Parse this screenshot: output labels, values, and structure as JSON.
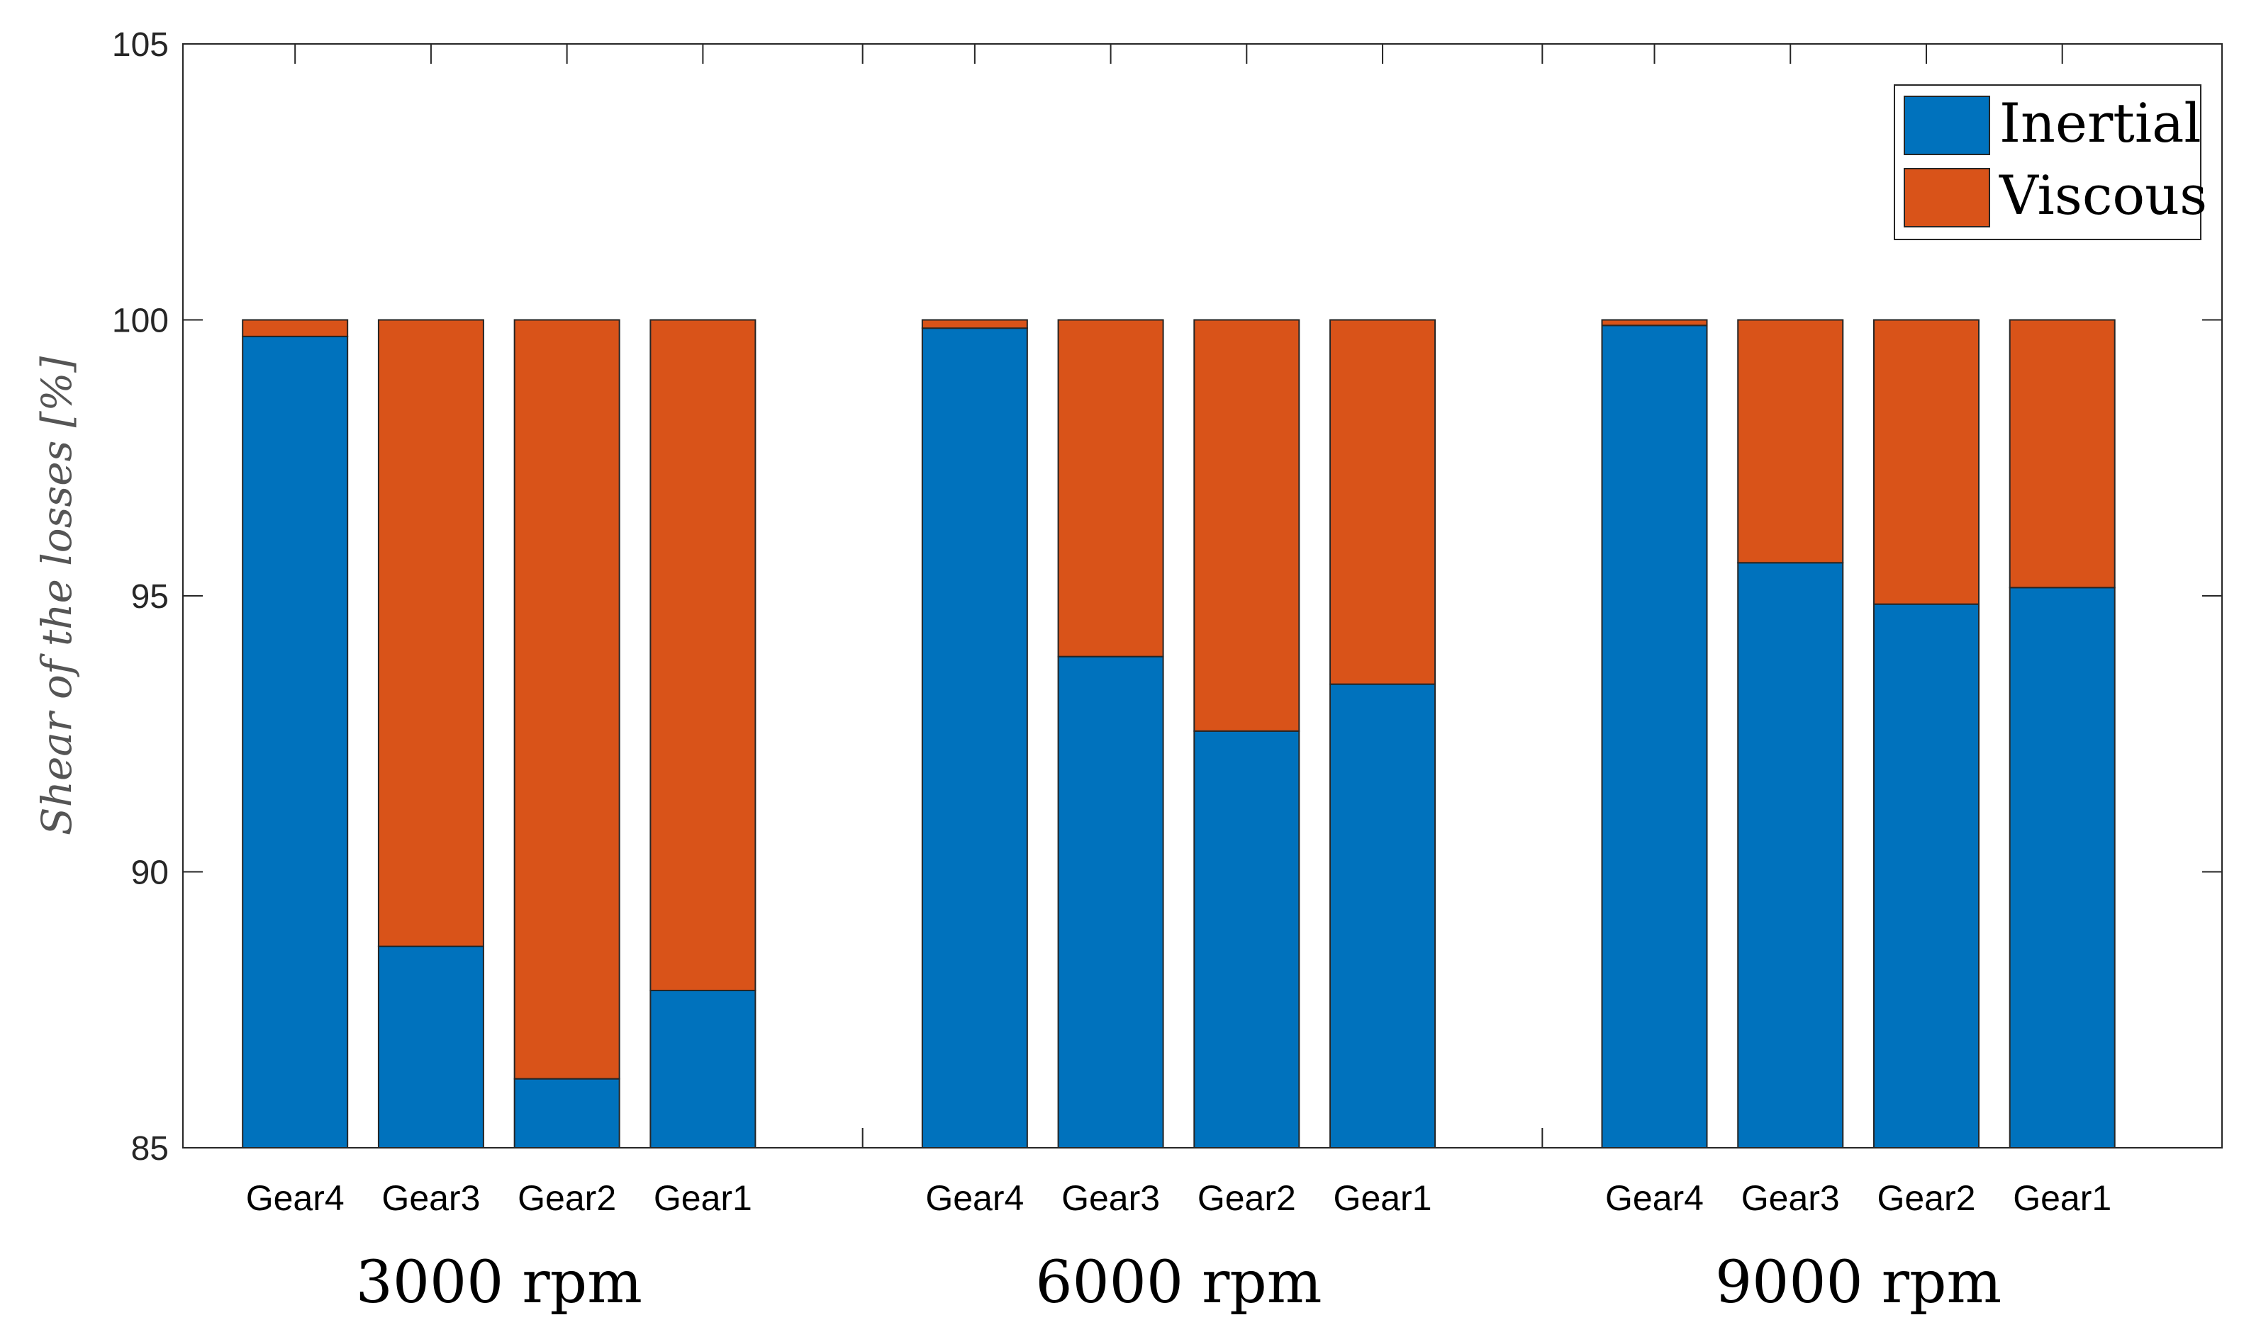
{
  "chart_data": {
    "type": "bar",
    "stacked": true,
    "ylabel": "Shear of the losses [%]",
    "ylim": [
      85,
      105
    ],
    "yticks": [
      85,
      90,
      95,
      100,
      105
    ],
    "legend_position": "top-right",
    "colors": {
      "Inertial": "#0072BD",
      "Viscous": "#D95319"
    },
    "groups": [
      {
        "label": "3000 rpm",
        "categories": [
          "Gear4",
          "Gear3",
          "Gear2",
          "Gear1"
        ],
        "inertial": [
          99.7,
          88.65,
          86.25,
          87.85
        ],
        "viscous": [
          0.3,
          11.35,
          13.75,
          12.15
        ]
      },
      {
        "label": "6000 rpm",
        "categories": [
          "Gear4",
          "Gear3",
          "Gear2",
          "Gear1"
        ],
        "inertial": [
          99.85,
          93.9,
          92.55,
          93.4
        ],
        "viscous": [
          0.15,
          6.1,
          7.45,
          6.6
        ]
      },
      {
        "label": "9000 rpm",
        "categories": [
          "Gear4",
          "Gear3",
          "Gear2",
          "Gear1"
        ],
        "inertial": [
          99.9,
          95.6,
          94.85,
          95.15
        ],
        "viscous": [
          0.1,
          4.4,
          5.15,
          4.85
        ]
      }
    ],
    "series": [
      {
        "name": "Inertial"
      },
      {
        "name": "Viscous"
      }
    ]
  }
}
